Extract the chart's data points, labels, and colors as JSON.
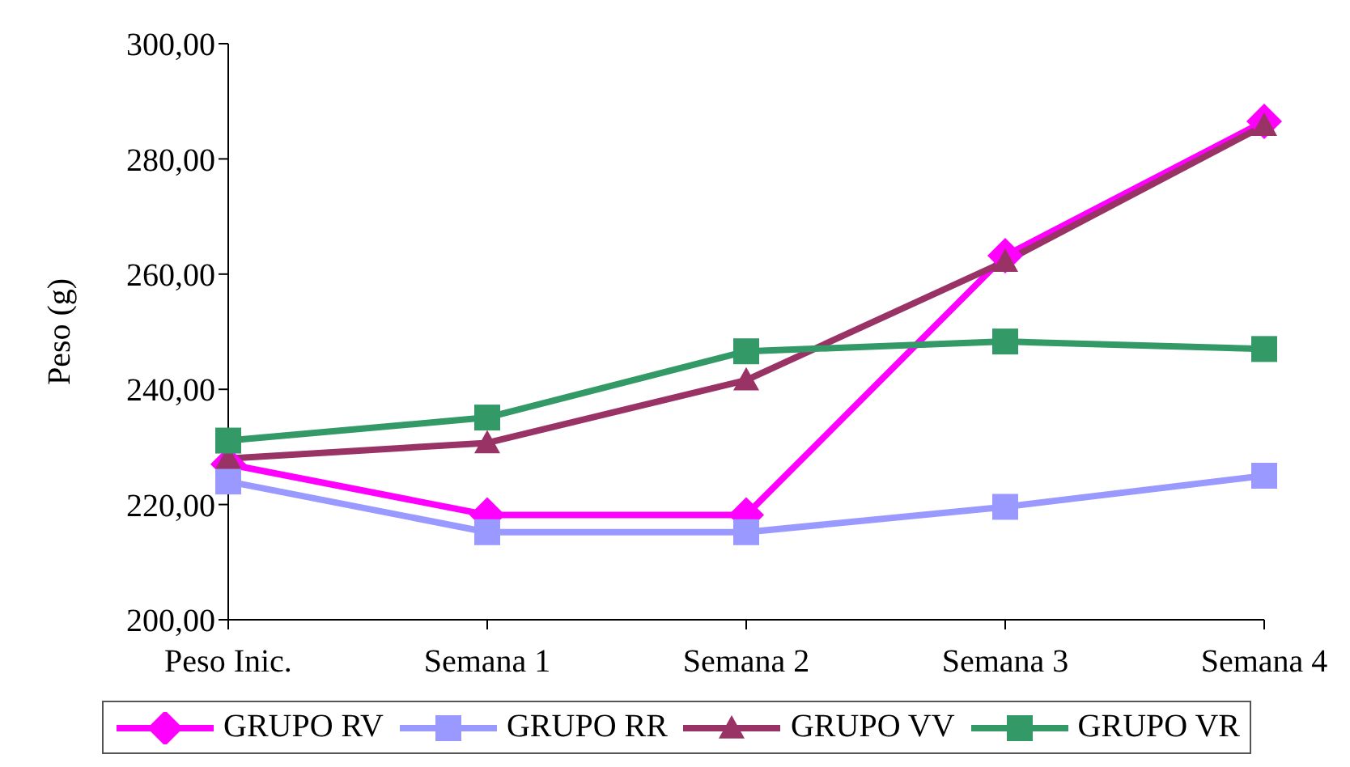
{
  "chart_data": {
    "type": "line",
    "ylabel": "Peso (g)",
    "categories": [
      "Peso Inic.",
      "Semana 1",
      "Semana 2",
      "Semana 3",
      "Semana 4"
    ],
    "series": [
      {
        "name": "GRUPO RV",
        "color": "#ff00ff",
        "marker": "diamond",
        "values": [
          227.0,
          218.2,
          218.2,
          263.2,
          286.5
        ]
      },
      {
        "name": "GRUPO RR",
        "color": "#9999ff",
        "marker": "square",
        "values": [
          224.0,
          215.2,
          215.2,
          219.6,
          225.0
        ]
      },
      {
        "name": "GRUPO VV",
        "color": "#993366",
        "marker": "triangle",
        "values": [
          228.0,
          230.7,
          241.6,
          262.2,
          285.8
        ]
      },
      {
        "name": "GRUPO VR",
        "color": "#339966",
        "marker": "square",
        "values": [
          231.1,
          235.1,
          246.6,
          248.3,
          247.0
        ]
      }
    ],
    "ylim": [
      200,
      300
    ],
    "yticks": [
      {
        "value": 200,
        "label": "200,00"
      },
      {
        "value": 220,
        "label": "220,00"
      },
      {
        "value": 240,
        "label": "240,00"
      },
      {
        "value": 260,
        "label": "260,00"
      },
      {
        "value": 280,
        "label": "280,00"
      },
      {
        "value": 300,
        "label": "300,00"
      }
    ],
    "grid": false,
    "legend": "bottom"
  }
}
